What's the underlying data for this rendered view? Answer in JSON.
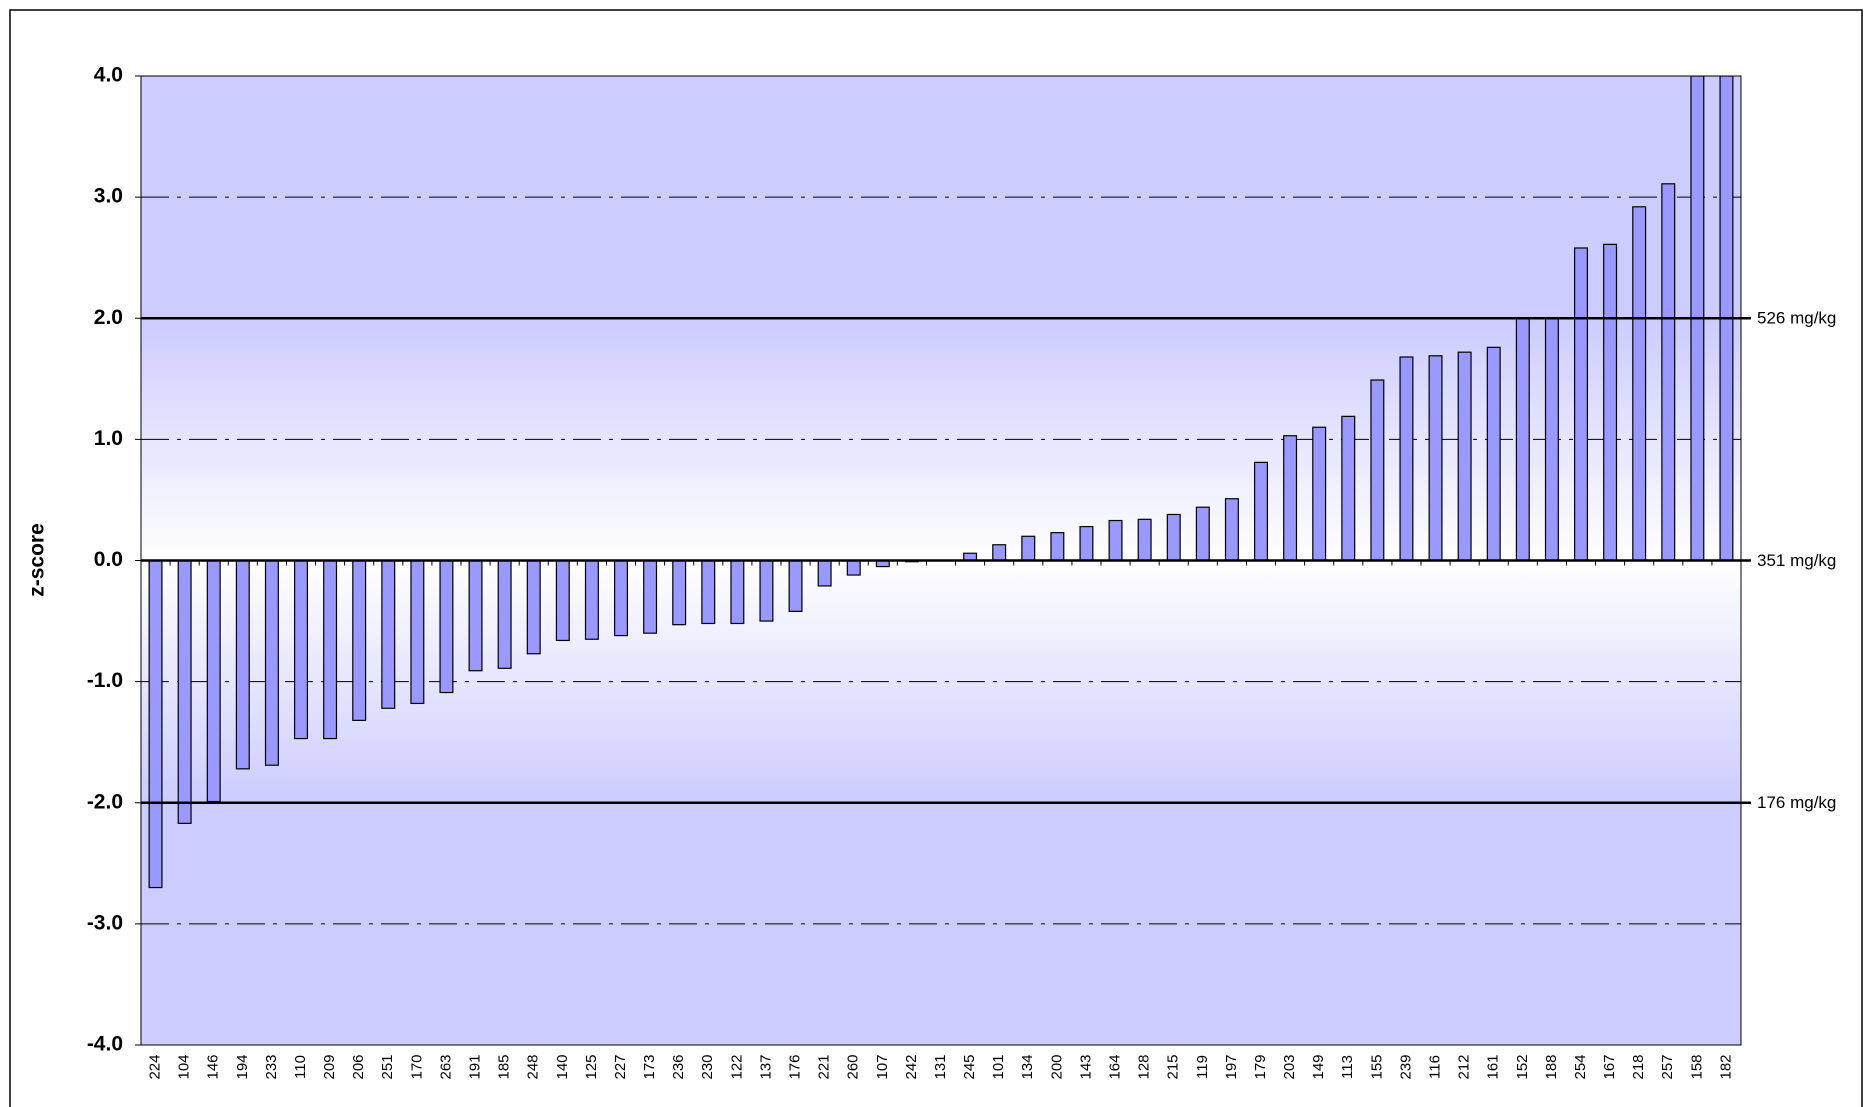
{
  "chart_data": {
    "type": "bar",
    "ylabel": "z-score",
    "categories": [
      "224",
      "104",
      "146",
      "194",
      "233",
      "110",
      "209",
      "206",
      "251",
      "170",
      "263",
      "191",
      "185",
      "248",
      "140",
      "125",
      "227",
      "173",
      "236",
      "230",
      "122",
      "137",
      "176",
      "221",
      "260",
      "107",
      "242",
      "131",
      "245",
      "101",
      "134",
      "200",
      "143",
      "164",
      "128",
      "215",
      "119",
      "197",
      "179",
      "203",
      "149",
      "113",
      "155",
      "239",
      "116",
      "212",
      "161",
      "152",
      "188",
      "254",
      "167",
      "218",
      "257",
      "158",
      "182"
    ],
    "values": [
      -2.7,
      -2.17,
      -1.99,
      -1.72,
      -1.69,
      -1.47,
      -1.47,
      -1.32,
      -1.22,
      -1.18,
      -1.09,
      -0.91,
      -0.89,
      -0.77,
      -0.66,
      -0.65,
      -0.62,
      -0.6,
      -0.53,
      -0.52,
      -0.52,
      -0.5,
      -0.42,
      -0.21,
      -0.12,
      -0.05,
      -0.01,
      0,
      0.06,
      0.13,
      0.2,
      0.23,
      0.28,
      0.33,
      0.34,
      0.38,
      0.44,
      0.51,
      0.81,
      1.03,
      1.1,
      1.19,
      1.49,
      1.68,
      1.69,
      1.72,
      1.76,
      2.0,
      2.0,
      2.58,
      2.61,
      2.92,
      3.11,
      4.0,
      4.0
    ],
    "color": "#9999ff",
    "ylim": [
      -4,
      4
    ],
    "yticks": [
      {
        "value": -4,
        "label": "-4.0"
      },
      {
        "value": -3,
        "label": "-3.0"
      },
      {
        "value": -2,
        "label": "-2.0"
      },
      {
        "value": -1,
        "label": "-1.0"
      },
      {
        "value": 0,
        "label": "0.0"
      },
      {
        "value": 1,
        "label": "1.0"
      },
      {
        "value": 2,
        "label": "2.0"
      },
      {
        "value": 3,
        "label": "3.0"
      },
      {
        "value": 4,
        "label": "4.0"
      }
    ],
    "grid": true,
    "reference_lines": [
      {
        "value": 2,
        "label": "526 mg/kg"
      },
      {
        "value": 0,
        "label": "351 mg/kg"
      },
      {
        "value": -2,
        "label": "176 mg/kg"
      }
    ]
  }
}
